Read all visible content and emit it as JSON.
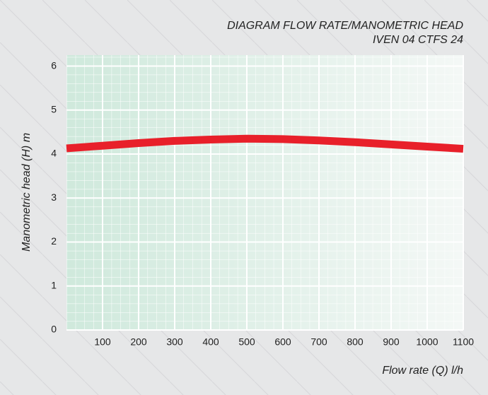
{
  "chart_data": {
    "type": "line",
    "title": [
      "DIAGRAM FLOW RATE/MANOMETRIC HEAD",
      "IVEN 04 CTFS 24"
    ],
    "x_label": "Flow rate (Q) l/h",
    "y_label": "Manometric head (H) m",
    "x": [
      0,
      100,
      200,
      300,
      400,
      500,
      600,
      700,
      800,
      900,
      1000,
      1100
    ],
    "series": [
      {
        "name": "IVEN 04 CTFS 24",
        "color": "#e8202a",
        "values": [
          4.13,
          4.19,
          4.25,
          4.3,
          4.33,
          4.35,
          4.34,
          4.31,
          4.27,
          4.22,
          4.17,
          4.12
        ]
      }
    ],
    "xlim": [
      0,
      1100
    ],
    "xticks": [
      100,
      200,
      300,
      400,
      500,
      600,
      700,
      800,
      900,
      1000,
      1100
    ],
    "ylim": [
      0,
      6.25
    ],
    "yticks": [
      0,
      1,
      2,
      3,
      4,
      5,
      6
    ],
    "grid": true
  }
}
